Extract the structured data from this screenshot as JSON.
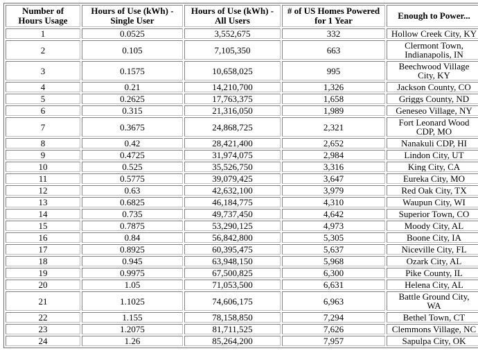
{
  "colors": {
    "background": "#ffffff",
    "text": "#000000",
    "border_outer": "#6f6f6f",
    "border_cell_dark": "#808080",
    "border_cell_light": "#bdbdbd"
  },
  "chart_data": {
    "type": "table",
    "columns": [
      "Number of\nHours Usage",
      "Hours of Use (kWh) -\nSingle User",
      "Hours of Use (kWh) -\nAll Users",
      "# of US Homes Powered\nfor 1 Year",
      "Enough to Power..."
    ],
    "column_keys": [
      "hours-usage",
      "single-user-kwh",
      "all-users-kwh",
      "homes-powered",
      "enough-to-power"
    ],
    "rows": [
      [
        "1",
        "0.0525",
        "3,552,675",
        "332",
        "Hollow Creek City, KY"
      ],
      [
        "2",
        "0.105",
        "7,105,350",
        "663",
        "Clermont Town,\nIndianapolis, IN"
      ],
      [
        "3",
        "0.1575",
        "10,658,025",
        "995",
        "Beechwood Village\nCity, KY"
      ],
      [
        "4",
        "0.21",
        "14,210,700",
        "1,326",
        "Jackson County, CO"
      ],
      [
        "5",
        "0.2625",
        "17,763,375",
        "1,658",
        "Griggs County, ND"
      ],
      [
        "6",
        "0.315",
        "21,316,050",
        "1,989",
        "Geneseo Village, NY"
      ],
      [
        "7",
        "0.3675",
        "24,868,725",
        "2,321",
        "Fort Leonard Wood\nCDP, MO"
      ],
      [
        "8",
        "0.42",
        "28,421,400",
        "2,652",
        "Nanakuli CDP, HI"
      ],
      [
        "9",
        "0.4725",
        "31,974,075",
        "2,984",
        "Lindon City, UT"
      ],
      [
        "10",
        "0.525",
        "35,526,750",
        "3,316",
        "King City, CA"
      ],
      [
        "11",
        "0.5775",
        "39,079,425",
        "3,647",
        "Eureka City, MO"
      ],
      [
        "12",
        "0.63",
        "42,632,100",
        "3,979",
        "Red Oak City, TX"
      ],
      [
        "13",
        "0.6825",
        "46,184,775",
        "4,310",
        "Waupun City, WI"
      ],
      [
        "14",
        "0.735",
        "49,737,450",
        "4,642",
        "Superior Town, CO"
      ],
      [
        "15",
        "0.7875",
        "53,290,125",
        "4,973",
        "Moody City, AL"
      ],
      [
        "16",
        "0.84",
        "56,842,800",
        "5,305",
        "Boone City, IA"
      ],
      [
        "17",
        "0.8925",
        "60,395,475",
        "5,637",
        "Niceville City, FL"
      ],
      [
        "18",
        "0.945",
        "63,948,150",
        "5,968",
        "Ozark City, AL"
      ],
      [
        "19",
        "0.9975",
        "67,500,825",
        "6,300",
        "Pike County, IL"
      ],
      [
        "20",
        "1.05",
        "71,053,500",
        "6,631",
        "Helena City, AL"
      ],
      [
        "21",
        "1.1025",
        "74,606,175",
        "6,963",
        "Battle Ground City,\nWA"
      ],
      [
        "22",
        "1.155",
        "78,158,850",
        "7,294",
        "Bethel Town, CT"
      ],
      [
        "23",
        "1.2075",
        "81,711,525",
        "7,626",
        "Clemmons Village, NC"
      ],
      [
        "24",
        "1.26",
        "85,264,200",
        "7,957",
        "Sapulpa City, OK"
      ]
    ]
  }
}
